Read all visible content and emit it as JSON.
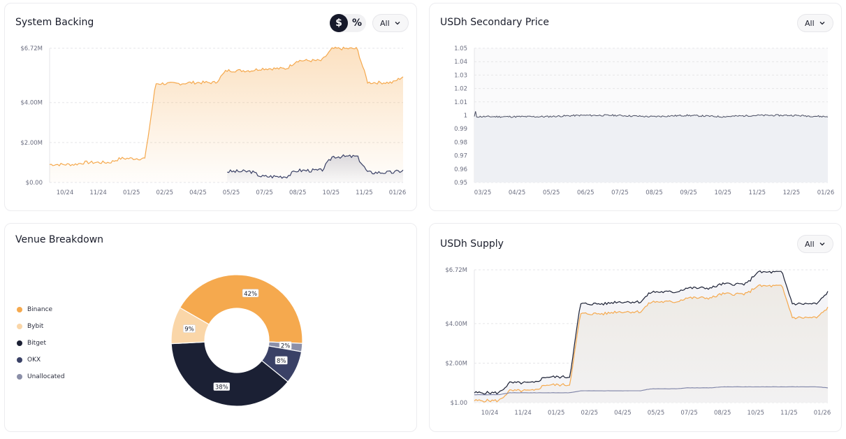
{
  "colors": {
    "orange": "#f5a94e",
    "orange_light": "#fad6a8",
    "navy": "#1b2034",
    "navy_mid": "#3a4166",
    "grey_blue": "#8b8fa8",
    "grid": "#e5e5e8"
  },
  "system_backing": {
    "title": "System Backing",
    "toggle": {
      "dollar": "$",
      "percent": "%",
      "active": "dollar"
    },
    "range_label": "All",
    "y_ticks": [
      "$6.72M",
      "$4.00M",
      "$2.00M",
      "$0.00"
    ],
    "x_ticks": [
      "10/24",
      "11/24",
      "01/25",
      "02/25",
      "04/25",
      "05/25",
      "07/25",
      "08/25",
      "10/25",
      "11/25",
      "01/26"
    ]
  },
  "secondary_price": {
    "title": "USDh Secondary Price",
    "range_label": "All",
    "y_ticks": [
      "1.05",
      "1.04",
      "1.03",
      "1.02",
      "1.01",
      "1",
      "0.99",
      "0.98",
      "0.97",
      "0.96",
      "0.95"
    ],
    "x_ticks": [
      "03/25",
      "04/25",
      "05/25",
      "06/25",
      "07/25",
      "08/25",
      "09/25",
      "10/25",
      "11/25",
      "12/25",
      "01/26"
    ]
  },
  "venue_breakdown": {
    "title": "Venue Breakdown",
    "legend": [
      {
        "label": "Binance",
        "color": "#f5a94e"
      },
      {
        "label": "Bybit",
        "color": "#fad6a8"
      },
      {
        "label": "Bitget",
        "color": "#1b2034"
      },
      {
        "label": "OKX",
        "color": "#3a4166"
      },
      {
        "label": "Unallocated",
        "color": "#8b8fa8"
      }
    ]
  },
  "usdh_supply": {
    "title": "USDh Supply",
    "range_label": "All",
    "y_ticks": [
      "$6.72M",
      "$4.00M",
      "$2.00M",
      "$1.00"
    ],
    "x_ticks": [
      "10/24",
      "11/24",
      "01/25",
      "02/25",
      "04/25",
      "05/25",
      "07/25",
      "08/25",
      "10/25",
      "11/25",
      "01/26"
    ]
  },
  "chart_data": [
    {
      "type": "area",
      "title": "System Backing",
      "ylim": [
        0,
        6.72
      ],
      "y_unit": "$M",
      "categories": [
        "10/24",
        "11/24",
        "01/25",
        "02/25",
        "04/25",
        "05/25",
        "07/25",
        "08/25",
        "10/25",
        "11/25",
        "01/26"
      ],
      "series": [
        {
          "values": [
            0.9,
            1.0,
            1.2,
            4.95,
            5.0,
            5.6,
            5.7,
            6.1,
            6.7,
            5.0,
            5.3
          ]
        },
        {
          "values": [
            null,
            null,
            null,
            null,
            null,
            0.55,
            0.3,
            0.6,
            1.3,
            0.5,
            0.6
          ]
        }
      ]
    },
    {
      "type": "line",
      "title": "USDh Secondary Price",
      "ylim": [
        0.95,
        1.05
      ],
      "categories": [
        "03/25",
        "04/25",
        "05/25",
        "06/25",
        "07/25",
        "08/25",
        "09/25",
        "10/25",
        "11/25",
        "12/25",
        "01/26"
      ],
      "series": [
        {
          "values": [
            0.999,
            0.999,
            0.999,
            1.0,
            1.0,
            0.999,
            1.0,
            0.999,
            1.0,
            1.0,
            0.999
          ]
        }
      ]
    },
    {
      "type": "pie",
      "title": "Venue Breakdown",
      "labels": [
        "Binance",
        "Bybit",
        "Bitget",
        "OKX",
        "Unallocated"
      ],
      "values": [
        42,
        9,
        38,
        8,
        2
      ],
      "value_labels": [
        "42%",
        "9%",
        "38%",
        "8%",
        "2%"
      ]
    },
    {
      "type": "line",
      "title": "USDh Supply",
      "ylim": [
        0,
        6.72
      ],
      "y_unit": "$M",
      "categories": [
        "10/24",
        "11/24",
        "01/25",
        "02/25",
        "04/25",
        "05/25",
        "07/25",
        "08/25",
        "10/25",
        "11/25",
        "01/26"
      ],
      "series": [
        {
          "values": [
            0.5,
            1.0,
            1.3,
            5.0,
            5.1,
            5.6,
            5.8,
            6.0,
            6.6,
            5.0,
            5.6
          ]
        },
        {
          "values": [
            0.1,
            0.6,
            0.9,
            4.5,
            4.6,
            5.1,
            5.3,
            5.5,
            5.9,
            4.3,
            4.8
          ]
        },
        {
          "values": [
            0.4,
            0.5,
            0.5,
            0.6,
            0.6,
            0.7,
            0.75,
            0.8,
            0.8,
            0.8,
            0.75
          ]
        }
      ]
    }
  ]
}
